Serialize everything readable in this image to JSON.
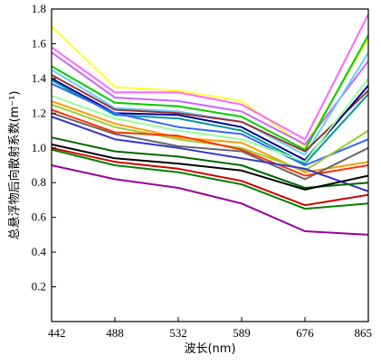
{
  "chart_data": {
    "type": "line",
    "title": "",
    "xlabel": "波长(nm)",
    "ylabel": "总悬浮物后向散射系数(m⁻¹)",
    "x": [
      "442",
      "488",
      "532",
      "589",
      "676",
      "865"
    ],
    "ylim": [
      0.0,
      1.8
    ],
    "yticks": [
      "0.2",
      "0.4",
      "0.6",
      "0.8",
      "1.0",
      "1.2",
      "1.4",
      "1.6",
      "1.8"
    ],
    "grid": false,
    "legend": "none",
    "series": [
      {
        "color": "#ffff33",
        "values": [
          1.7,
          1.35,
          1.33,
          1.27,
          1.01,
          1.63
        ]
      },
      {
        "color": "#ff66ff",
        "values": [
          1.58,
          1.32,
          1.32,
          1.25,
          1.05,
          1.77
        ]
      },
      {
        "color": "#cc66ff",
        "values": [
          1.55,
          1.29,
          1.27,
          1.21,
          1.02,
          1.5
        ]
      },
      {
        "color": "#00cc00",
        "values": [
          1.47,
          1.26,
          1.24,
          1.18,
          0.99,
          1.65
        ]
      },
      {
        "color": "#66ccff",
        "values": [
          1.45,
          1.23,
          1.21,
          1.15,
          0.96,
          1.55
        ]
      },
      {
        "color": "#993333",
        "values": [
          1.42,
          1.22,
          1.2,
          1.15,
          0.98,
          1.33
        ]
      },
      {
        "color": "#000099",
        "values": [
          1.4,
          1.2,
          1.19,
          1.12,
          0.93,
          1.36
        ]
      },
      {
        "color": "#009999",
        "values": [
          1.39,
          1.19,
          1.17,
          1.1,
          0.91,
          1.31
        ]
      },
      {
        "color": "#3366ff",
        "values": [
          1.37,
          1.2,
          1.12,
          1.08,
          0.9,
          1.05
        ]
      },
      {
        "color": "#99ff99",
        "values": [
          1.3,
          1.17,
          1.1,
          1.05,
          0.92,
          1.4
        ]
      },
      {
        "color": "#ff9900",
        "values": [
          1.27,
          1.14,
          1.06,
          1.03,
          0.86,
          0.92
        ]
      },
      {
        "color": "#99cc33",
        "values": [
          1.25,
          1.12,
          1.05,
          1.0,
          0.87,
          1.1
        ]
      },
      {
        "color": "#ff3300",
        "values": [
          1.22,
          1.09,
          1.07,
          0.99,
          0.84,
          0.9
        ]
      },
      {
        "color": "#666666",
        "values": [
          1.2,
          1.08,
          1.01,
          0.98,
          0.82,
          1.0
        ]
      },
      {
        "color": "#3333cc",
        "values": [
          1.18,
          1.05,
          1.0,
          0.94,
          0.88,
          0.75
        ]
      },
      {
        "color": "#006600",
        "values": [
          1.06,
          0.98,
          0.95,
          0.9,
          0.77,
          0.8
        ]
      },
      {
        "color": "#000000",
        "values": [
          1.02,
          0.94,
          0.91,
          0.87,
          0.76,
          0.84
        ]
      },
      {
        "color": "#cc0000",
        "values": [
          1.0,
          0.92,
          0.88,
          0.81,
          0.67,
          0.73
        ]
      },
      {
        "color": "#008000",
        "values": [
          0.99,
          0.9,
          0.86,
          0.79,
          0.65,
          0.68
        ]
      },
      {
        "color": "#990099",
        "values": [
          0.9,
          0.82,
          0.77,
          0.68,
          0.52,
          0.5
        ]
      }
    ]
  }
}
